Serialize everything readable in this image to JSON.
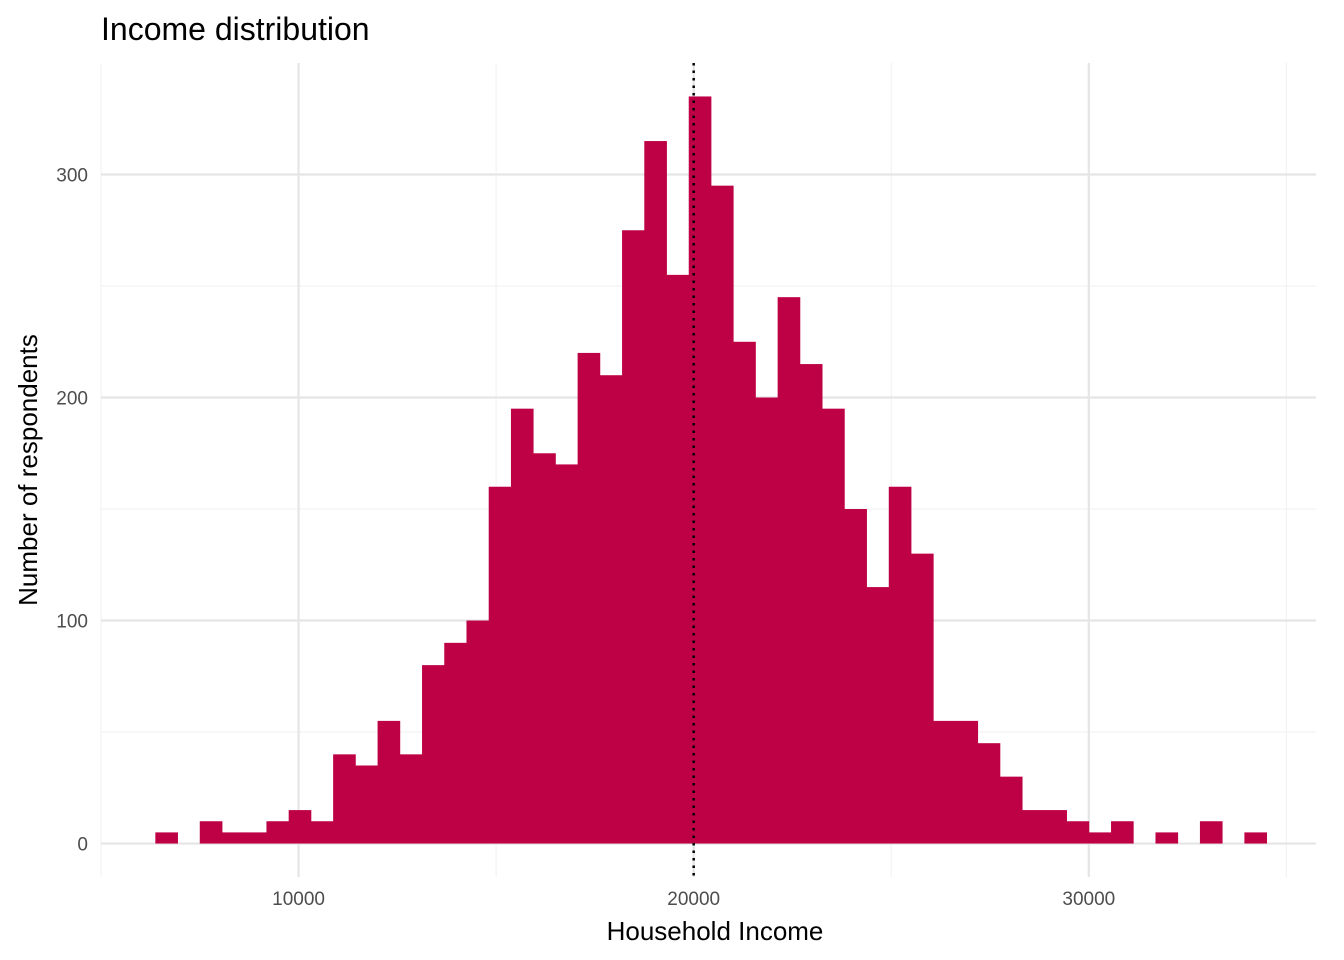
{
  "chart_data": {
    "type": "bar",
    "title": "Income distribution",
    "xlabel": "Household Income",
    "ylabel": "Number of respondents",
    "bin_width": 562.5,
    "x": [
      6656.25,
      7218.75,
      7781.25,
      8343.75,
      8906.25,
      9468.75,
      10031.25,
      10593.75,
      11156.25,
      11718.75,
      12281.25,
      12843.75,
      13406.25,
      13968.75,
      14531.25,
      15093.75,
      15656.25,
      16218.75,
      16781.25,
      17343.75,
      17906.25,
      18468.75,
      19031.25,
      19593.75,
      20156.25,
      20718.75,
      21281.25,
      21843.75,
      22406.25,
      22968.75,
      23531.25,
      24093.75,
      24656.25,
      25218.75,
      25781.25,
      26343.75,
      26906.25,
      27468.75,
      28031.25,
      28593.75,
      29156.25,
      29718.75,
      30281.25,
      30843.75,
      31406.25,
      31968.75,
      32531.25,
      33093.75,
      33656.25,
      34218.75
    ],
    "values": [
      5,
      0,
      10,
      5,
      5,
      10,
      15,
      10,
      40,
      35,
      55,
      40,
      80,
      90,
      100,
      160,
      195,
      175,
      170,
      220,
      210,
      275,
      315,
      255,
      335,
      295,
      225,
      200,
      245,
      215,
      195,
      150,
      115,
      160,
      130,
      55,
      55,
      45,
      30,
      15,
      15,
      10,
      5,
      10,
      0,
      5,
      0,
      10,
      0,
      5
    ],
    "xlim": [
      5000,
      35750
    ],
    "ylim": [
      -15,
      350
    ],
    "x_ticks": [
      10000,
      20000,
      30000
    ],
    "x_tick_labels": [
      "10000",
      "20000",
      "30000"
    ],
    "y_ticks": [
      0,
      100,
      200,
      300
    ],
    "y_tick_labels": [
      "0",
      "100",
      "200",
      "300"
    ],
    "x_minor_ticks": [
      5000,
      15000,
      25000,
      35000
    ],
    "y_minor_ticks": [
      50,
      150,
      250
    ],
    "vline": 20000,
    "vline_style": "dotted",
    "grid": true,
    "legend": "none",
    "colors": {
      "bar": "#be0045",
      "grid_major": "#e5e5e5",
      "grid_minor": "#f2f2f2",
      "vline": "#000000",
      "tick_text": "#4d4d4d"
    }
  }
}
